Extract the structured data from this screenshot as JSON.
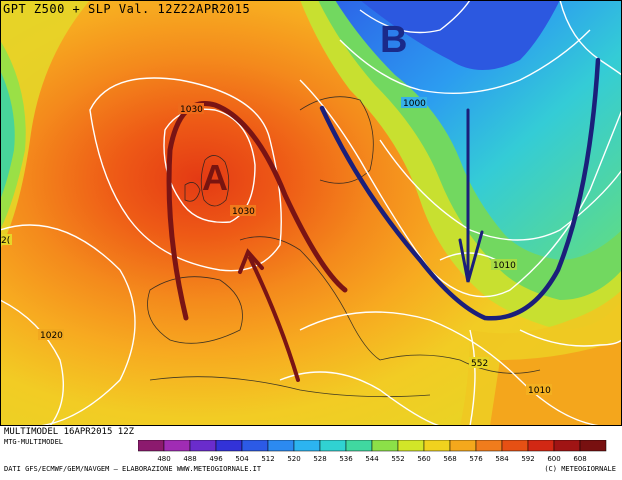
{
  "header": {
    "title": "GPT Z500 + SLP Val. 12Z22APR2015"
  },
  "map": {
    "high_label": "A",
    "low_label": "B",
    "isobar_labels": [
      "1030",
      "1030",
      "1000",
      "1010",
      "1020",
      "1010",
      "552",
      "2("
    ],
    "colors": {
      "high_arrow": "#7a1414",
      "trough_line": "#1b1f7a",
      "isolines": "#ffffff"
    }
  },
  "footer": {
    "run": "MULTIMODEL 16APR2015 12Z",
    "model": "MTG-MULTIMODEL",
    "credits": "DATI GFS/ECMWF/GEM/NAVGEM — ELABORAZIONE WWW.METEOGIORNALE.IT",
    "copyright": "(C) METEOGIORNALE"
  },
  "legend": {
    "labels": [
      "480",
      "488",
      "496",
      "504",
      "512",
      "520",
      "528",
      "536",
      "544",
      "552",
      "560",
      "568",
      "576",
      "584",
      "592",
      "600",
      "608"
    ],
    "colors": [
      "#8c1a6e",
      "#a02cb4",
      "#6a2ccc",
      "#3232d8",
      "#2c5ae6",
      "#2c8af0",
      "#2cb4f0",
      "#30d2d2",
      "#40d8a0",
      "#8ce048",
      "#d2e628",
      "#f0d21e",
      "#f4a81c",
      "#f07c1c",
      "#e65014",
      "#d22814",
      "#a01414",
      "#781010"
    ]
  }
}
